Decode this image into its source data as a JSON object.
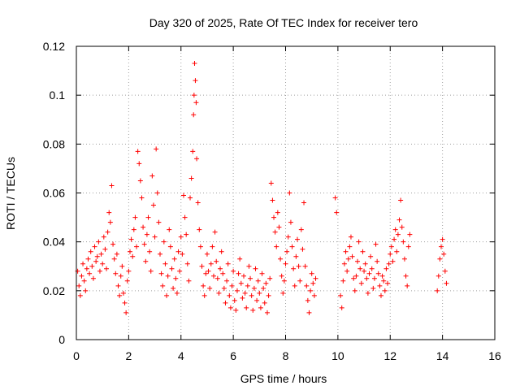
{
  "chart_data": {
    "type": "scatter",
    "title": "Day 320 of 2025, Rate Of TEC Index for receiver tero",
    "xlabel": "GPS time / hours",
    "ylabel": "ROTI / TECUs",
    "xlim": [
      0,
      16
    ],
    "ylim": [
      0,
      0.12
    ],
    "x_ticks": [
      0,
      2,
      4,
      6,
      8,
      10,
      12,
      14,
      16
    ],
    "x_tick_labels": [
      "0",
      "2",
      "4",
      "6",
      "8",
      "10",
      "12",
      "14",
      "16"
    ],
    "y_ticks": [
      0,
      0.02,
      0.04,
      0.06,
      0.08,
      0.1,
      0.12
    ],
    "y_tick_labels": [
      "0",
      "0.02",
      "0.04",
      "0.06",
      "0.08",
      "0.1",
      "0.12"
    ],
    "grid": true,
    "marker": "+",
    "marker_color": "#ff0000",
    "series": [
      {
        "name": "ROTI",
        "points": [
          [
            0.05,
            0.028
          ],
          [
            0.1,
            0.022
          ],
          [
            0.15,
            0.018
          ],
          [
            0.2,
            0.026
          ],
          [
            0.25,
            0.031
          ],
          [
            0.3,
            0.024
          ],
          [
            0.35,
            0.02
          ],
          [
            0.4,
            0.029
          ],
          [
            0.45,
            0.033
          ],
          [
            0.5,
            0.027
          ],
          [
            0.55,
            0.036
          ],
          [
            0.6,
            0.03
          ],
          [
            0.65,
            0.025
          ],
          [
            0.7,
            0.038
          ],
          [
            0.75,
            0.032
          ],
          [
            0.8,
            0.034
          ],
          [
            0.85,
            0.04
          ],
          [
            0.9,
            0.028
          ],
          [
            0.95,
            0.035
          ],
          [
            1.0,
            0.031
          ],
          [
            1.05,
            0.042
          ],
          [
            1.1,
            0.037
          ],
          [
            1.15,
            0.029
          ],
          [
            1.2,
            0.044
          ],
          [
            1.25,
            0.052
          ],
          [
            1.3,
            0.048
          ],
          [
            1.35,
            0.063
          ],
          [
            1.4,
            0.039
          ],
          [
            1.45,
            0.033
          ],
          [
            1.5,
            0.027
          ],
          [
            1.55,
            0.035
          ],
          [
            1.6,
            0.022
          ],
          [
            1.65,
            0.018
          ],
          [
            1.7,
            0.026
          ],
          [
            1.75,
            0.03
          ],
          [
            1.8,
            0.019
          ],
          [
            1.85,
            0.015
          ],
          [
            1.9,
            0.011
          ],
          [
            1.95,
            0.024
          ],
          [
            2.0,
            0.028
          ],
          [
            2.05,
            0.036
          ],
          [
            2.1,
            0.041
          ],
          [
            2.15,
            0.034
          ],
          [
            2.2,
            0.045
          ],
          [
            2.25,
            0.05
          ],
          [
            2.3,
            0.038
          ],
          [
            2.35,
            0.077
          ],
          [
            2.4,
            0.072
          ],
          [
            2.45,
            0.065
          ],
          [
            2.5,
            0.058
          ],
          [
            2.55,
            0.046
          ],
          [
            2.6,
            0.039
          ],
          [
            2.65,
            0.032
          ],
          [
            2.7,
            0.043
          ],
          [
            2.75,
            0.05
          ],
          [
            2.8,
            0.036
          ],
          [
            2.85,
            0.028
          ],
          [
            2.9,
            0.067
          ],
          [
            2.95,
            0.055
          ],
          [
            3.0,
            0.042
          ],
          [
            3.05,
            0.078
          ],
          [
            3.1,
            0.06
          ],
          [
            3.15,
            0.048
          ],
          [
            3.2,
            0.035
          ],
          [
            3.25,
            0.027
          ],
          [
            3.3,
            0.022
          ],
          [
            3.35,
            0.04
          ],
          [
            3.4,
            0.031
          ],
          [
            3.45,
            0.018
          ],
          [
            3.5,
            0.026
          ],
          [
            3.55,
            0.045
          ],
          [
            3.6,
            0.038
          ],
          [
            3.65,
            0.029
          ],
          [
            3.7,
            0.021
          ],
          [
            3.75,
            0.033
          ],
          [
            3.8,
            0.025
          ],
          [
            3.85,
            0.019
          ],
          [
            3.9,
            0.036
          ],
          [
            3.95,
            0.028
          ],
          [
            4.0,
            0.042
          ],
          [
            4.05,
            0.035
          ],
          [
            4.1,
            0.059
          ],
          [
            4.15,
            0.05
          ],
          [
            4.2,
            0.043
          ],
          [
            4.25,
            0.031
          ],
          [
            4.3,
            0.024
          ],
          [
            4.35,
            0.058
          ],
          [
            4.4,
            0.066
          ],
          [
            4.45,
            0.077
          ],
          [
            4.48,
            0.092
          ],
          [
            4.5,
            0.1
          ],
          [
            4.52,
            0.113
          ],
          [
            4.55,
            0.106
          ],
          [
            4.58,
            0.097
          ],
          [
            4.6,
            0.074
          ],
          [
            4.65,
            0.056
          ],
          [
            4.7,
            0.045
          ],
          [
            4.75,
            0.038
          ],
          [
            4.8,
            0.03
          ],
          [
            4.85,
            0.022
          ],
          [
            4.9,
            0.018
          ],
          [
            4.95,
            0.027
          ],
          [
            5.0,
            0.035
          ],
          [
            5.05,
            0.028
          ],
          [
            5.1,
            0.021
          ],
          [
            5.15,
            0.031
          ],
          [
            5.2,
            0.038
          ],
          [
            5.25,
            0.026
          ],
          [
            5.3,
            0.044
          ],
          [
            5.35,
            0.032
          ],
          [
            5.4,
            0.025
          ],
          [
            5.45,
            0.019
          ],
          [
            5.5,
            0.029
          ],
          [
            5.55,
            0.036
          ],
          [
            5.6,
            0.027
          ],
          [
            5.65,
            0.021
          ],
          [
            5.7,
            0.015
          ],
          [
            5.75,
            0.024
          ],
          [
            5.8,
            0.031
          ],
          [
            5.85,
            0.018
          ],
          [
            5.9,
            0.013
          ],
          [
            5.95,
            0.022
          ],
          [
            6.0,
            0.028
          ],
          [
            6.05,
            0.016
          ],
          [
            6.1,
            0.012
          ],
          [
            6.15,
            0.02
          ],
          [
            6.2,
            0.027
          ],
          [
            6.25,
            0.033
          ],
          [
            6.3,
            0.023
          ],
          [
            6.35,
            0.017
          ],
          [
            6.4,
            0.026
          ],
          [
            6.45,
            0.019
          ],
          [
            6.5,
            0.013
          ],
          [
            6.55,
            0.022
          ],
          [
            6.6,
            0.03
          ],
          [
            6.65,
            0.025
          ],
          [
            6.7,
            0.018
          ],
          [
            6.75,
            0.012
          ],
          [
            6.8,
            0.021
          ],
          [
            6.85,
            0.029
          ],
          [
            6.9,
            0.016
          ],
          [
            6.95,
            0.024
          ],
          [
            7.0,
            0.019
          ],
          [
            7.05,
            0.013
          ],
          [
            7.1,
            0.027
          ],
          [
            7.15,
            0.021
          ],
          [
            7.2,
            0.015
          ],
          [
            7.25,
            0.023
          ],
          [
            7.3,
            0.011
          ],
          [
            7.35,
            0.018
          ],
          [
            7.4,
            0.025
          ],
          [
            7.45,
            0.064
          ],
          [
            7.5,
            0.057
          ],
          [
            7.55,
            0.05
          ],
          [
            7.6,
            0.044
          ],
          [
            7.65,
            0.038
          ],
          [
            7.7,
            0.052
          ],
          [
            7.75,
            0.046
          ],
          [
            7.8,
            0.033
          ],
          [
            7.85,
            0.026
          ],
          [
            7.9,
            0.019
          ],
          [
            7.95,
            0.024
          ],
          [
            8.0,
            0.031
          ],
          [
            8.05,
            0.036
          ],
          [
            8.1,
            0.042
          ],
          [
            8.15,
            0.06
          ],
          [
            8.2,
            0.048
          ],
          [
            8.25,
            0.038
          ],
          [
            8.3,
            0.029
          ],
          [
            8.35,
            0.022
          ],
          [
            8.4,
            0.034
          ],
          [
            8.45,
            0.041
          ],
          [
            8.5,
            0.03
          ],
          [
            8.55,
            0.024
          ],
          [
            8.6,
            0.045
          ],
          [
            8.65,
            0.037
          ],
          [
            8.7,
            0.056
          ],
          [
            8.75,
            0.03
          ],
          [
            8.8,
            0.022
          ],
          [
            8.85,
            0.016
          ],
          [
            8.9,
            0.011
          ],
          [
            8.95,
            0.02
          ],
          [
            9.0,
            0.027
          ],
          [
            9.05,
            0.023
          ],
          [
            9.1,
            0.018
          ],
          [
            9.15,
            0.025
          ],
          [
            9.9,
            0.058
          ],
          [
            9.95,
            0.052
          ],
          [
            10.1,
            0.018
          ],
          [
            10.15,
            0.013
          ],
          [
            10.2,
            0.024
          ],
          [
            10.25,
            0.031
          ],
          [
            10.3,
            0.036
          ],
          [
            10.35,
            0.028
          ],
          [
            10.4,
            0.033
          ],
          [
            10.45,
            0.038
          ],
          [
            10.5,
            0.042
          ],
          [
            10.55,
            0.034
          ],
          [
            10.6,
            0.025
          ],
          [
            10.65,
            0.02
          ],
          [
            10.7,
            0.026
          ],
          [
            10.75,
            0.032
          ],
          [
            10.8,
            0.04
          ],
          [
            10.85,
            0.029
          ],
          [
            10.9,
            0.023
          ],
          [
            10.95,
            0.036
          ],
          [
            11.0,
            0.028
          ],
          [
            11.05,
            0.031
          ],
          [
            11.1,
            0.025
          ],
          [
            11.15,
            0.019
          ],
          [
            11.2,
            0.027
          ],
          [
            11.25,
            0.034
          ],
          [
            11.3,
            0.029
          ],
          [
            11.35,
            0.021
          ],
          [
            11.4,
            0.025
          ],
          [
            11.45,
            0.039
          ],
          [
            11.5,
            0.032
          ],
          [
            11.55,
            0.027
          ],
          [
            11.6,
            0.022
          ],
          [
            11.65,
            0.018
          ],
          [
            11.7,
            0.026
          ],
          [
            11.75,
            0.024
          ],
          [
            11.8,
            0.02
          ],
          [
            11.85,
            0.029
          ],
          [
            11.9,
            0.023
          ],
          [
            11.95,
            0.031
          ],
          [
            12.0,
            0.035
          ],
          [
            12.05,
            0.038
          ],
          [
            12.1,
            0.032
          ],
          [
            12.15,
            0.041
          ],
          [
            12.2,
            0.045
          ],
          [
            12.25,
            0.036
          ],
          [
            12.3,
            0.043
          ],
          [
            12.35,
            0.049
          ],
          [
            12.4,
            0.057
          ],
          [
            12.45,
            0.046
          ],
          [
            12.5,
            0.04
          ],
          [
            12.55,
            0.033
          ],
          [
            12.6,
            0.026
          ],
          [
            12.65,
            0.022
          ],
          [
            12.7,
            0.038
          ],
          [
            12.75,
            0.043
          ],
          [
            13.8,
            0.02
          ],
          [
            13.85,
            0.026
          ],
          [
            13.9,
            0.033
          ],
          [
            13.95,
            0.038
          ],
          [
            14.0,
            0.041
          ],
          [
            14.05,
            0.035
          ],
          [
            14.1,
            0.028
          ],
          [
            14.15,
            0.023
          ]
        ]
      }
    ]
  }
}
